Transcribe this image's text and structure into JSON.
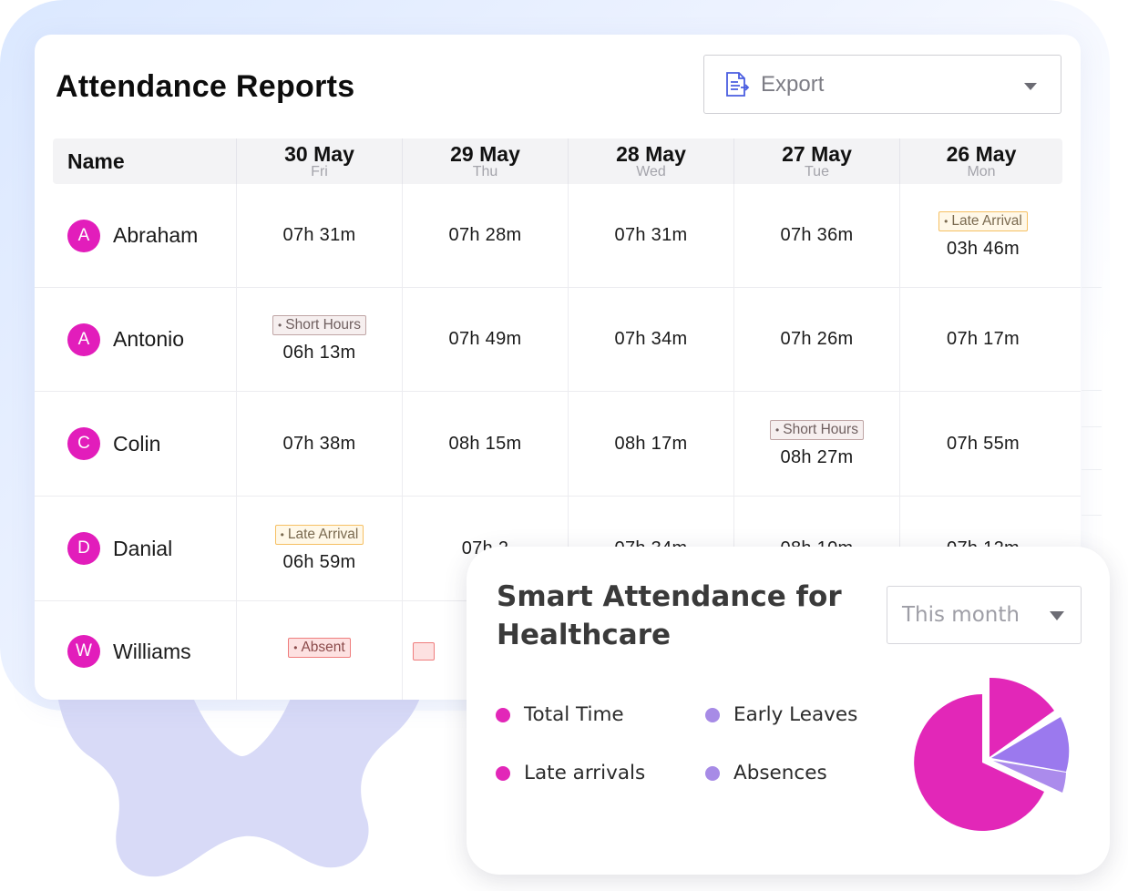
{
  "report": {
    "title": "Attendance Reports",
    "export_label": "Export",
    "name_header": "Name",
    "days": [
      {
        "date": "30 May",
        "weekday": "Fri"
      },
      {
        "date": "29 May",
        "weekday": "Thu"
      },
      {
        "date": "28 May",
        "weekday": "Wed"
      },
      {
        "date": "27 May",
        "weekday": "Tue"
      },
      {
        "date": "26 May",
        "weekday": "Mon"
      }
    ],
    "rows": [
      {
        "initial": "A",
        "name": "Abraham",
        "cells": [
          {
            "time": "07h 31m"
          },
          {
            "time": "07h 28m"
          },
          {
            "time": "07h 31m"
          },
          {
            "time": "07h 36m"
          },
          {
            "time": "03h 46m",
            "badge": "Late Arrival",
            "badge_type": "late"
          }
        ]
      },
      {
        "initial": "A",
        "name": "Antonio",
        "cells": [
          {
            "time": "06h 13m",
            "badge": "Short Hours",
            "badge_type": "short"
          },
          {
            "time": "07h 49m"
          },
          {
            "time": "07h 34m"
          },
          {
            "time": "07h 26m"
          },
          {
            "time": "07h 17m"
          }
        ]
      },
      {
        "initial": "C",
        "name": "Colin",
        "cells": [
          {
            "time": "07h 38m"
          },
          {
            "time": "08h 15m"
          },
          {
            "time": "08h 17m"
          },
          {
            "time": "08h 27m",
            "badge": "Short Hours",
            "badge_type": "short"
          },
          {
            "time": "07h 55m"
          }
        ]
      },
      {
        "initial": "D",
        "name": "Danial",
        "cells": [
          {
            "time": "06h 59m",
            "badge": "Late Arrival",
            "badge_type": "late"
          },
          {
            "time": "07h 2"
          },
          {
            "time": "07h 34m"
          },
          {
            "time": "08h 10m"
          },
          {
            "time": "07h 12m"
          }
        ]
      },
      {
        "initial": "W",
        "name": "Williams",
        "cells": [
          {
            "badge": "Absent",
            "badge_type": "absent"
          },
          {
            "badge_type": "absent-partial"
          },
          {},
          {},
          {}
        ]
      }
    ]
  },
  "smart": {
    "title": "Smart Attendance for Healthcare",
    "period": "This month",
    "legend": [
      {
        "label": "Total Time",
        "color": "#e227b8"
      },
      {
        "label": "Early Leaves",
        "color": "#a78be6"
      },
      {
        "label": "Late arrivals",
        "color": "#e227b8"
      },
      {
        "label": "Absences",
        "color": "#a78be6"
      }
    ]
  },
  "colors": {
    "accent_magenta": "#e227b8",
    "accent_purple": "#9b79ee",
    "avatar": "#e21dbb"
  }
}
